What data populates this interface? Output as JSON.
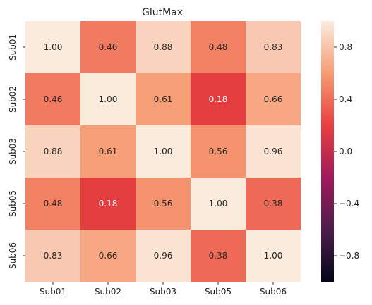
{
  "chart_data": {
    "type": "heatmap",
    "title": "GlutMax",
    "x_labels": [
      "Sub01",
      "Sub02",
      "Sub03",
      "Sub05",
      "Sub06"
    ],
    "y_labels": [
      "Sub01",
      "Sub02",
      "Sub03",
      "Sub05",
      "Sub06"
    ],
    "values": [
      [
        1.0,
        0.46,
        0.88,
        0.48,
        0.83
      ],
      [
        0.46,
        1.0,
        0.61,
        0.18,
        0.66
      ],
      [
        0.88,
        0.61,
        1.0,
        0.56,
        0.96
      ],
      [
        0.48,
        0.18,
        0.56,
        1.0,
        0.38
      ],
      [
        0.83,
        0.66,
        0.96,
        0.38,
        1.0
      ]
    ],
    "value_format": "0.00",
    "colorbar": {
      "range": [
        -1.0,
        1.0
      ],
      "ticks": [
        0.8,
        0.4,
        0.0,
        -0.4,
        -0.8
      ],
      "tick_labels": [
        "0.8",
        "0.4",
        "0.0",
        "−0.4",
        "−0.8"
      ],
      "colormap": "rocket",
      "stops": [
        "#03051a",
        "#4c1d4b",
        "#a11a5b",
        "#e83f3f",
        "#f69c73",
        "#faebdd"
      ]
    }
  }
}
